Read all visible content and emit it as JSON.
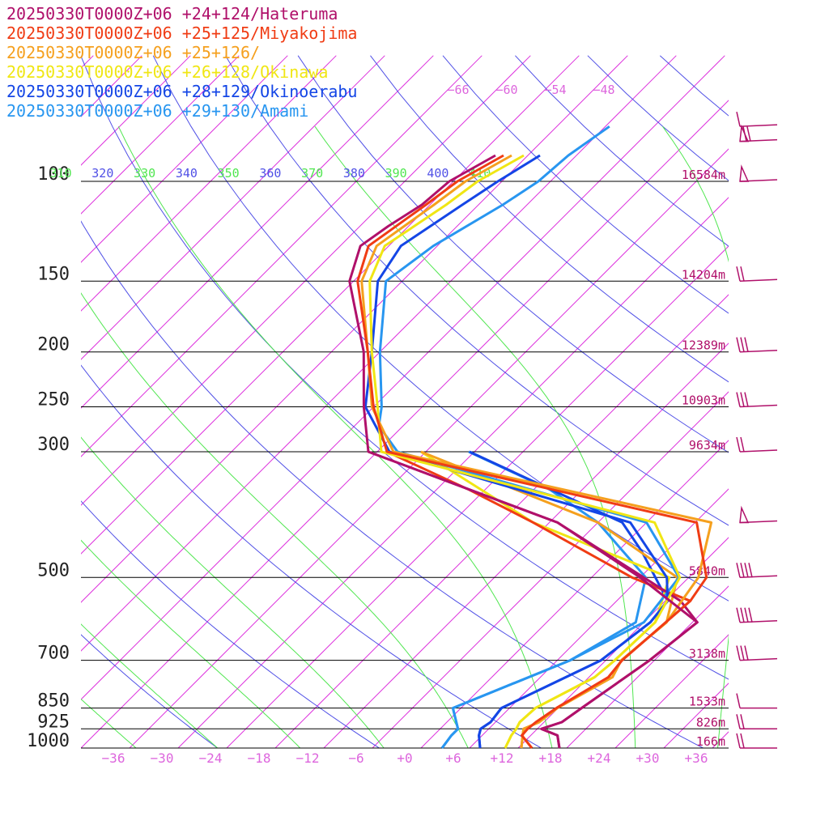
{
  "legend": [
    {
      "text": "20250330T0000Z+06 +24+124/Hateruma",
      "color": "#b0106a"
    },
    {
      "text": "20250330T0000Z+06 +25+125/Miyakojima",
      "color": "#f03c14"
    },
    {
      "text": "20250330T0000Z+06 +25+126/",
      "color": "#f5a01e"
    },
    {
      "text": "20250330T0000Z+06 +26+128/Okinawa",
      "color": "#f0e614"
    },
    {
      "text": "20250330T0000Z+06 +28+129/Okinoerabu",
      "color": "#1446e6"
    },
    {
      "text": "20250330T0000Z+06 +29+130/Amami",
      "color": "#2896f0"
    }
  ],
  "colors": {
    "isobar": "#000000",
    "isotherm": "#dd33dd",
    "dry_adiabat": "#5050e6",
    "moist_adiabat": "#50e650",
    "wind_barb": "#b0106a",
    "height_label": "#b0106a",
    "temp_tick": "#dd66dd"
  },
  "chart_data": {
    "type": "line",
    "subtype": "skew-T log-P sounding",
    "xlabel": "",
    "ylabel": "",
    "x_tick_labels": [
      "−36",
      "−30",
      "−24",
      "−18",
      "−12",
      "−6",
      "+0",
      "+6",
      "+12",
      "+18",
      "+24",
      "+30",
      "+36"
    ],
    "pressure_levels": [
      {
        "label": "100",
        "p": 100,
        "height": "16584m"
      },
      {
        "label": "150",
        "p": 150,
        "height": "14204m"
      },
      {
        "label": "200",
        "p": 200,
        "height": "12389m"
      },
      {
        "label": "250",
        "p": 250,
        "height": "10903m"
      },
      {
        "label": "300",
        "p": 300,
        "height": "9634m"
      },
      {
        "label": "500",
        "p": 500,
        "height": "5840m"
      },
      {
        "label": "700",
        "p": 700,
        "height": "3138m"
      },
      {
        "label": "850",
        "p": 850,
        "height": "1533m"
      },
      {
        "label": "925",
        "p": 925,
        "height": "826m"
      },
      {
        "label": "1000",
        "p": 1000,
        "height": "166m"
      }
    ],
    "theta_labels": [
      "310",
      "320",
      "330",
      "340",
      "350",
      "360",
      "370",
      "380",
      "390",
      "400",
      "410"
    ],
    "upper_isotherm_labels": [
      "−66",
      "−60",
      "−54",
      "−48"
    ],
    "plim": [
      1000,
      80
    ],
    "tlim_bottom": [
      -40,
      40
    ],
    "series": [
      {
        "name": "20250330T0000Z+06 +24+124/Hateruma",
        "color": "#b0106a",
        "temperature": [
          [
            1000,
            19.1
          ],
          [
            950,
            17.3
          ],
          [
            925,
            14.5
          ],
          [
            900,
            16.2
          ],
          [
            850,
            16.9
          ],
          [
            700,
            19.4
          ],
          [
            600,
            20.6
          ],
          [
            500,
            8.0
          ],
          [
            400,
            -9.0
          ],
          [
            300,
            -41.1
          ],
          [
            250,
            -47.2
          ],
          [
            200,
            -54.0
          ],
          [
            150,
            -64.5
          ],
          [
            130,
            -67.5
          ],
          [
            120,
            -66.5
          ],
          [
            110,
            -65.0
          ],
          [
            100,
            -64.5
          ],
          [
            90,
            -62.0
          ]
        ],
        "dewpoint": [
          [
            1000,
            19.1
          ],
          [
            950,
            17.3
          ],
          [
            925,
            14.5
          ],
          [
            900,
            16.2
          ],
          [
            850,
            16.9
          ],
          [
            700,
            19.4
          ],
          [
            600,
            20.6
          ],
          [
            550,
            15.9
          ],
          [
            400,
            -9.0
          ],
          [
            300,
            -41.1
          ]
        ]
      },
      {
        "name": "20250330T0000Z+06 +25+125/Miyakojima",
        "color": "#f03c14",
        "temperature": [
          [
            1000,
            15.7
          ],
          [
            950,
            12.9
          ],
          [
            925,
            12.8
          ],
          [
            900,
            13.0
          ],
          [
            850,
            13.8
          ],
          [
            750,
            16.4
          ],
          [
            700,
            16.0
          ],
          [
            600,
            16.7
          ],
          [
            550,
            17.1
          ],
          [
            500,
            16.2
          ],
          [
            400,
            8.2
          ],
          [
            300,
            -38.8
          ],
          [
            250,
            -46.0
          ],
          [
            200,
            -53.5
          ],
          [
            150,
            -63.5
          ],
          [
            130,
            -66.5
          ],
          [
            110,
            -64.5
          ],
          [
            100,
            -63.5
          ],
          [
            90,
            -61.0
          ]
        ],
        "dewpoint": [
          [
            1000,
            15.7
          ],
          [
            950,
            12.9
          ],
          [
            925,
            12.8
          ],
          [
            900,
            13.0
          ],
          [
            850,
            13.8
          ],
          [
            750,
            16.4
          ],
          [
            700,
            16.0
          ],
          [
            600,
            16.7
          ],
          [
            550,
            17.1
          ],
          [
            500,
            7.0
          ],
          [
            400,
            -12.0
          ],
          [
            350,
            -24.0
          ],
          [
            300,
            -38.8
          ]
        ]
      },
      {
        "name": "20250330T0000Z+06 +25+126/",
        "color": "#f5a01e",
        "temperature": [
          [
            1000,
            14.4
          ],
          [
            950,
            13.0
          ],
          [
            925,
            12.3
          ],
          [
            900,
            13.4
          ],
          [
            850,
            13.9
          ],
          [
            750,
            16.9
          ],
          [
            700,
            15.9
          ],
          [
            600,
            16.8
          ],
          [
            500,
            15.2
          ],
          [
            400,
            10.0
          ],
          [
            300,
            -38.0
          ],
          [
            250,
            -46.2
          ],
          [
            200,
            -53.5
          ],
          [
            150,
            -63.0
          ],
          [
            130,
            -65.5
          ],
          [
            110,
            -63.5
          ],
          [
            100,
            -62.5
          ],
          [
            90,
            -60.0
          ]
        ],
        "dewpoint": [
          [
            1000,
            14.4
          ],
          [
            950,
            13.0
          ],
          [
            925,
            12.3
          ],
          [
            900,
            13.4
          ],
          [
            850,
            13.9
          ],
          [
            750,
            16.9
          ],
          [
            700,
            15.9
          ],
          [
            600,
            16.8
          ],
          [
            500,
            12.6
          ],
          [
            400,
            -4.0
          ],
          [
            300,
            -34.6
          ]
        ]
      },
      {
        "name": "20250330T0000Z+06 +26+128/Okinawa",
        "color": "#f0e614",
        "temperature": [
          [
            1000,
            12.4
          ],
          [
            950,
            11.6
          ],
          [
            925,
            11.4
          ],
          [
            900,
            11.0
          ],
          [
            850,
            11.2
          ],
          [
            750,
            14.7
          ],
          [
            700,
            15.1
          ],
          [
            600,
            15.4
          ],
          [
            500,
            12.9
          ],
          [
            400,
            3.0
          ],
          [
            300,
            -39.5
          ],
          [
            250,
            -45.5
          ],
          [
            200,
            -53.0
          ],
          [
            150,
            -62.0
          ],
          [
            130,
            -64.5
          ],
          [
            110,
            -62.0
          ],
          [
            100,
            -61.0
          ],
          [
            90,
            -58.5
          ]
        ],
        "dewpoint": [
          [
            1000,
            12.4
          ],
          [
            950,
            11.6
          ],
          [
            925,
            11.4
          ],
          [
            900,
            11.0
          ],
          [
            850,
            11.2
          ],
          [
            750,
            14.7
          ],
          [
            700,
            15.1
          ],
          [
            600,
            15.4
          ],
          [
            500,
            11.6
          ],
          [
            400,
            -12.0
          ],
          [
            300,
            -34.6
          ]
        ]
      },
      {
        "name": "20250330T0000Z+06 +28+129/Okinoerabu",
        "color": "#1446e6",
        "temperature": [
          [
            1000,
            9.3
          ],
          [
            950,
            7.6
          ],
          [
            925,
            7.0
          ],
          [
            900,
            7.4
          ],
          [
            850,
            7.0
          ],
          [
            700,
            13.4
          ],
          [
            600,
            14.8
          ],
          [
            550,
            14.3
          ],
          [
            500,
            11.3
          ],
          [
            400,
            0.0
          ],
          [
            300,
            -38.5
          ],
          [
            250,
            -47.0
          ],
          [
            200,
            -53.0
          ],
          [
            150,
            -61.0
          ],
          [
            130,
            -62.5
          ],
          [
            110,
            -60.0
          ],
          [
            100,
            -58.5
          ],
          [
            90,
            -56.5
          ]
        ],
        "dewpoint": [
          [
            1000,
            9.3
          ],
          [
            950,
            7.6
          ],
          [
            925,
            7.0
          ],
          [
            900,
            7.4
          ],
          [
            850,
            7.0
          ],
          [
            700,
            13.4
          ],
          [
            600,
            14.8
          ],
          [
            550,
            14.3
          ],
          [
            450,
            5.0
          ],
          [
            400,
            -1.0
          ],
          [
            300,
            -28.6
          ]
        ]
      },
      {
        "name": "20250330T0000Z+06 +29+130/Amami",
        "color": "#2896f0",
        "temperature": [
          [
            1000,
            4.6
          ],
          [
            950,
            4.2
          ],
          [
            925,
            4.2
          ],
          [
            850,
            1.0
          ],
          [
            700,
            9.6
          ],
          [
            600,
            14.0
          ],
          [
            500,
            12.8
          ],
          [
            400,
            2.0
          ],
          [
            300,
            -37.5
          ],
          [
            270,
            -43.0
          ],
          [
            250,
            -45.0
          ],
          [
            200,
            -52.0
          ],
          [
            150,
            -60.0
          ],
          [
            130,
            -58.5
          ],
          [
            110,
            -55.0
          ],
          [
            100,
            -53.5
          ],
          [
            90,
            -53.0
          ],
          [
            80,
            -51.5
          ]
        ],
        "dewpoint": [
          [
            1000,
            4.6
          ],
          [
            950,
            4.2
          ],
          [
            925,
            4.2
          ],
          [
            850,
            1.0
          ],
          [
            700,
            9.6
          ],
          [
            600,
            13.0
          ],
          [
            500,
            8.7
          ],
          [
            400,
            -4.0
          ],
          [
            350,
            -14.0
          ],
          [
            300,
            -28.7
          ]
        ]
      }
    ],
    "wind_barbs": [
      {
        "p": 80,
        "flags": 0,
        "full": 1,
        "half": 0
      },
      {
        "p": 85,
        "flags": 1,
        "full": 2,
        "half": 0
      },
      {
        "p": 100,
        "flags": 1,
        "full": 0,
        "half": 0
      },
      {
        "p": 150,
        "flags": 0,
        "full": 2,
        "half": 0
      },
      {
        "p": 200,
        "flags": 0,
        "full": 3,
        "half": 0
      },
      {
        "p": 250,
        "flags": 0,
        "full": 3,
        "half": 0
      },
      {
        "p": 300,
        "flags": 0,
        "full": 2,
        "half": 0
      },
      {
        "p": 400,
        "flags": 1,
        "full": 0,
        "half": 0
      },
      {
        "p": 500,
        "flags": 0,
        "full": 4,
        "half": 0
      },
      {
        "p": 600,
        "flags": 0,
        "full": 4,
        "half": 0
      },
      {
        "p": 700,
        "flags": 0,
        "full": 3,
        "half": 0
      },
      {
        "p": 850,
        "flags": 0,
        "full": 1,
        "half": 0
      },
      {
        "p": 925,
        "flags": 0,
        "full": 2,
        "half": 0
      },
      {
        "p": 1000,
        "flags": 0,
        "full": 2,
        "half": 0
      }
    ]
  }
}
